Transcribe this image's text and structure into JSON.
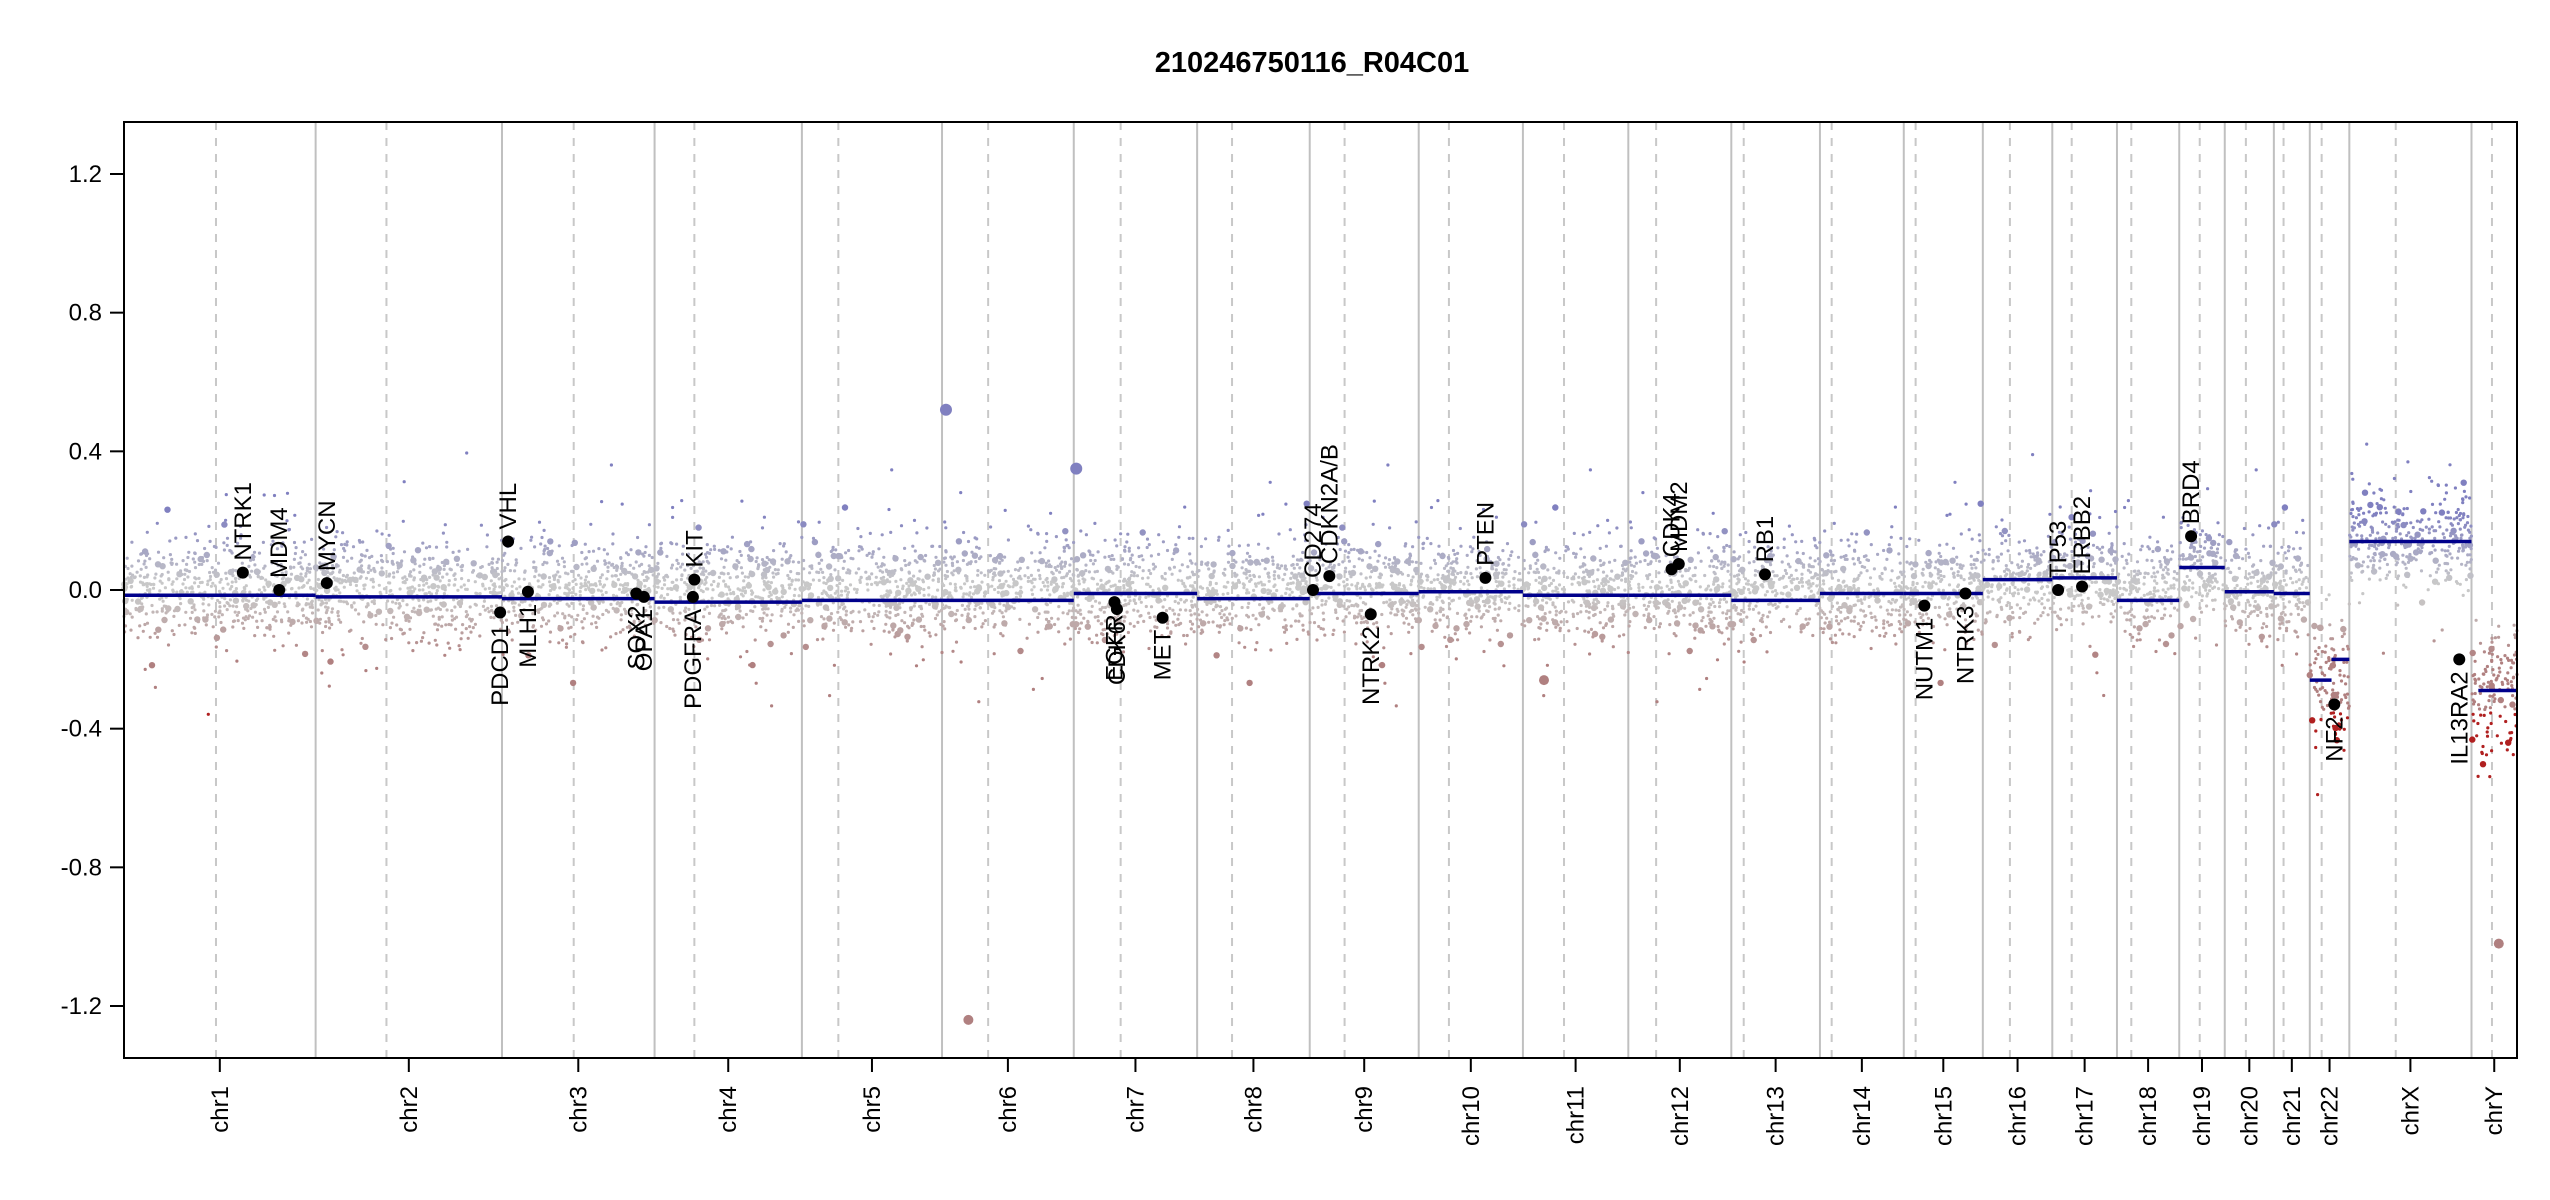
{
  "chart_data": {
    "type": "scatter",
    "title": "210246750116_R04C01",
    "xlabel": "",
    "ylabel": "",
    "ylim": [
      -1.35,
      1.35
    ],
    "y_ticks": [
      -1.2,
      -0.8,
      -0.4,
      0.0,
      0.4,
      0.8,
      1.2
    ],
    "y_tick_labels": [
      "-1.2",
      "-0.8",
      "-0.4",
      "0.0",
      "0.4",
      "0.8",
      "1.2"
    ],
    "grid": false,
    "colors": {
      "gain": "#8080c0",
      "neutral": "#c8c8c8",
      "loss": "#b08080",
      "deep_loss": "#b02020",
      "segment": "#00008b",
      "gene_point": "#000000",
      "chrom_border": "#c0c0c0",
      "centromere": "#c8c8c8"
    },
    "chromosomes": [
      {
        "name": "chr1",
        "fraction": 0.08,
        "centromere": 0.48,
        "segments": [
          {
            "from": 0.0,
            "to": 1.0,
            "value": -0.015
          }
        ],
        "noise_center": 0.0,
        "noise_sd": 0.09
      },
      {
        "name": "chr2",
        "fraction": 0.0778,
        "centromere": 0.38,
        "segments": [
          {
            "from": 0.0,
            "to": 1.0,
            "value": -0.02
          }
        ],
        "noise_center": 0.0,
        "noise_sd": 0.09
      },
      {
        "name": "chr3",
        "fraction": 0.0637,
        "centromere": 0.47,
        "segments": [
          {
            "from": 0.0,
            "to": 1.0,
            "value": -0.025
          }
        ],
        "noise_center": 0.0,
        "noise_sd": 0.09
      },
      {
        "name": "chr4",
        "fraction": 0.0615,
        "centromere": 0.27,
        "segments": [
          {
            "from": 0.0,
            "to": 1.0,
            "value": -0.035
          }
        ],
        "noise_center": 0.0,
        "noise_sd": 0.09
      },
      {
        "name": "chr5",
        "fraction": 0.0585,
        "centromere": 0.26,
        "segments": [
          {
            "from": 0.0,
            "to": 1.0,
            "value": -0.03
          }
        ],
        "noise_center": 0.0,
        "noise_sd": 0.09
      },
      {
        "name": "chr6",
        "fraction": 0.055,
        "centromere": 0.35,
        "segments": [
          {
            "from": 0.0,
            "to": 1.0,
            "value": -0.03
          }
        ],
        "noise_center": 0.0,
        "noise_sd": 0.09
      },
      {
        "name": "chr7",
        "fraction": 0.0515,
        "centromere": 0.38,
        "segments": [
          {
            "from": 0.0,
            "to": 1.0,
            "value": -0.01
          }
        ],
        "noise_center": 0.0,
        "noise_sd": 0.09
      },
      {
        "name": "chr8",
        "fraction": 0.047,
        "centromere": 0.31,
        "segments": [
          {
            "from": 0.0,
            "to": 1.0,
            "value": -0.025
          }
        ],
        "noise_center": 0.0,
        "noise_sd": 0.09
      },
      {
        "name": "chr9",
        "fraction": 0.0455,
        "centromere": 0.32,
        "segments": [
          {
            "from": 0.0,
            "to": 1.0,
            "value": -0.01
          }
        ],
        "noise_center": 0.0,
        "noise_sd": 0.09
      },
      {
        "name": "chr10",
        "fraction": 0.0435,
        "centromere": 0.29,
        "segments": [
          {
            "from": 0.0,
            "to": 1.0,
            "value": -0.005
          }
        ],
        "noise_center": 0.0,
        "noise_sd": 0.09
      },
      {
        "name": "chr11",
        "fraction": 0.044,
        "centromere": 0.39,
        "segments": [
          {
            "from": 0.0,
            "to": 1.0,
            "value": -0.015
          }
        ],
        "noise_center": 0.0,
        "noise_sd": 0.09
      },
      {
        "name": "chr12",
        "fraction": 0.043,
        "centromere": 0.27,
        "segments": [
          {
            "from": 0.0,
            "to": 1.0,
            "value": -0.015
          }
        ],
        "noise_center": 0.0,
        "noise_sd": 0.09
      },
      {
        "name": "chr13",
        "fraction": 0.037,
        "centromere": 0.14,
        "segments": [
          {
            "from": 0.0,
            "to": 1.0,
            "value": -0.03
          }
        ],
        "noise_center": 0.0,
        "noise_sd": 0.09
      },
      {
        "name": "chr14",
        "fraction": 0.035,
        "centromere": 0.14,
        "segments": [
          {
            "from": 0.0,
            "to": 1.0,
            "value": -0.01
          }
        ],
        "noise_center": 0.0,
        "noise_sd": 0.09
      },
      {
        "name": "chr15",
        "fraction": 0.033,
        "centromere": 0.15,
        "segments": [
          {
            "from": 0.0,
            "to": 1.0,
            "value": -0.01
          }
        ],
        "noise_center": 0.0,
        "noise_sd": 0.09
      },
      {
        "name": "chr16",
        "fraction": 0.029,
        "centromere": 0.39,
        "segments": [
          {
            "from": 0.0,
            "to": 1.0,
            "value": 0.03
          }
        ],
        "noise_center": 0.03,
        "noise_sd": 0.09
      },
      {
        "name": "chr17",
        "fraction": 0.027,
        "centromere": 0.3,
        "segments": [
          {
            "from": 0.0,
            "to": 1.0,
            "value": 0.035
          }
        ],
        "noise_center": 0.03,
        "noise_sd": 0.09
      },
      {
        "name": "chr18",
        "fraction": 0.026,
        "centromere": 0.23,
        "segments": [
          {
            "from": 0.0,
            "to": 1.0,
            "value": -0.03
          }
        ],
        "noise_center": 0.0,
        "noise_sd": 0.09
      },
      {
        "name": "chr19",
        "fraction": 0.019,
        "centromere": 0.45,
        "segments": [
          {
            "from": 0.0,
            "to": 1.0,
            "value": 0.065
          }
        ],
        "noise_center": 0.06,
        "noise_sd": 0.09
      },
      {
        "name": "chr20",
        "fraction": 0.0205,
        "centromere": 0.43,
        "segments": [
          {
            "from": 0.0,
            "to": 1.0,
            "value": -0.005
          }
        ],
        "noise_center": 0.0,
        "noise_sd": 0.09
      },
      {
        "name": "chr21",
        "fraction": 0.015,
        "centromere": 0.27,
        "segments": [
          {
            "from": 0.0,
            "to": 1.0,
            "value": -0.01
          }
        ],
        "noise_center": 0.0,
        "noise_sd": 0.09
      },
      {
        "name": "chr22",
        "fraction": 0.0165,
        "centromere": 0.3,
        "segments": [
          {
            "from": 0.0,
            "to": 0.55,
            "value": -0.26
          },
          {
            "from": 0.55,
            "to": 1.0,
            "value": -0.2
          }
        ],
        "noise_center": -0.25,
        "noise_sd": 0.13
      },
      {
        "name": "chrX",
        "fraction": 0.051,
        "centromere": 0.38,
        "segments": [
          {
            "from": 0.0,
            "to": 1.0,
            "value": 0.14
          }
        ],
        "noise_center": 0.14,
        "noise_sd": 0.09
      },
      {
        "name": "chrY",
        "fraction": 0.019,
        "centromere": 0.45,
        "segments": [
          {
            "from": 0.15,
            "to": 1.0,
            "value": -0.29
          }
        ],
        "noise_center": -0.3,
        "noise_sd": 0.12
      }
    ],
    "genes": [
      {
        "name": "NTRK1",
        "chr": "chr1",
        "pos": 0.62,
        "value": 0.05
      },
      {
        "name": "MDM4",
        "chr": "chr1",
        "pos": 0.81,
        "value": 0.0
      },
      {
        "name": "MYCN",
        "chr": "chr2",
        "pos": 0.06,
        "value": 0.02
      },
      {
        "name": "VHL",
        "chr": "chr3",
        "pos": 0.04,
        "value": 0.14
      },
      {
        "name": "PDCD1",
        "chr": "chr2",
        "pos": 0.99,
        "value": -0.065
      },
      {
        "name": "MLH1",
        "chr": "chr3",
        "pos": 0.17,
        "value": -0.005
      },
      {
        "name": "SOX2",
        "chr": "chr3",
        "pos": 0.88,
        "value": -0.01
      },
      {
        "name": "OPA1",
        "chr": "chr3",
        "pos": 0.93,
        "value": -0.02
      },
      {
        "name": "KIT",
        "chr": "chr4",
        "pos": 0.27,
        "value": 0.03
      },
      {
        "name": "PDGFRA",
        "chr": "chr4",
        "pos": 0.26,
        "value": -0.02
      },
      {
        "name": "EGFR",
        "chr": "chr7",
        "pos": 0.33,
        "value": -0.035
      },
      {
        "name": "CDK6",
        "chr": "chr7",
        "pos": 0.35,
        "value": -0.055
      },
      {
        "name": "MET",
        "chr": "chr7",
        "pos": 0.72,
        "value": -0.08
      },
      {
        "name": "CD274",
        "chr": "chr9",
        "pos": 0.03,
        "value": 0.0
      },
      {
        "name": "CDKN2A/B",
        "chr": "chr9",
        "pos": 0.18,
        "value": 0.04
      },
      {
        "name": "NTRK2",
        "chr": "chr9",
        "pos": 0.56,
        "value": -0.07
      },
      {
        "name": "PTEN",
        "chr": "chr10",
        "pos": 0.64,
        "value": 0.035
      },
      {
        "name": "CDK4",
        "chr": "chr12",
        "pos": 0.42,
        "value": 0.06
      },
      {
        "name": "MDM2",
        "chr": "chr12",
        "pos": 0.49,
        "value": 0.075
      },
      {
        "name": "RB1",
        "chr": "chr13",
        "pos": 0.38,
        "value": 0.045
      },
      {
        "name": "NUTM1",
        "chr": "chr15",
        "pos": 0.26,
        "value": -0.045
      },
      {
        "name": "NTRK3",
        "chr": "chr15",
        "pos": 0.78,
        "value": -0.01
      },
      {
        "name": "TP53",
        "chr": "chr17",
        "pos": 0.09,
        "value": 0.0
      },
      {
        "name": "ERBB2",
        "chr": "chr17",
        "pos": 0.46,
        "value": 0.01
      },
      {
        "name": "BRD4",
        "chr": "chr19",
        "pos": 0.26,
        "value": 0.155
      },
      {
        "name": "NF2",
        "chr": "chr22",
        "pos": 0.62,
        "value": -0.33
      },
      {
        "name": "IL13RA2",
        "chr": "chrX",
        "pos": 0.9,
        "value": -0.2
      }
    ],
    "notable_points": [
      {
        "chr": "chr7",
        "pos": 0.02,
        "value": 0.35,
        "kind": "gain"
      },
      {
        "chr": "chr11",
        "pos": 0.2,
        "value": -0.26,
        "kind": "loss"
      },
      {
        "chr": "chr6",
        "pos": 0.03,
        "value": 0.52,
        "kind": "gain"
      },
      {
        "chr": "chr6",
        "pos": 0.2,
        "value": -1.24,
        "kind": "loss"
      },
      {
        "chr": "chrY",
        "pos": 0.6,
        "value": -1.02,
        "kind": "loss"
      }
    ]
  }
}
